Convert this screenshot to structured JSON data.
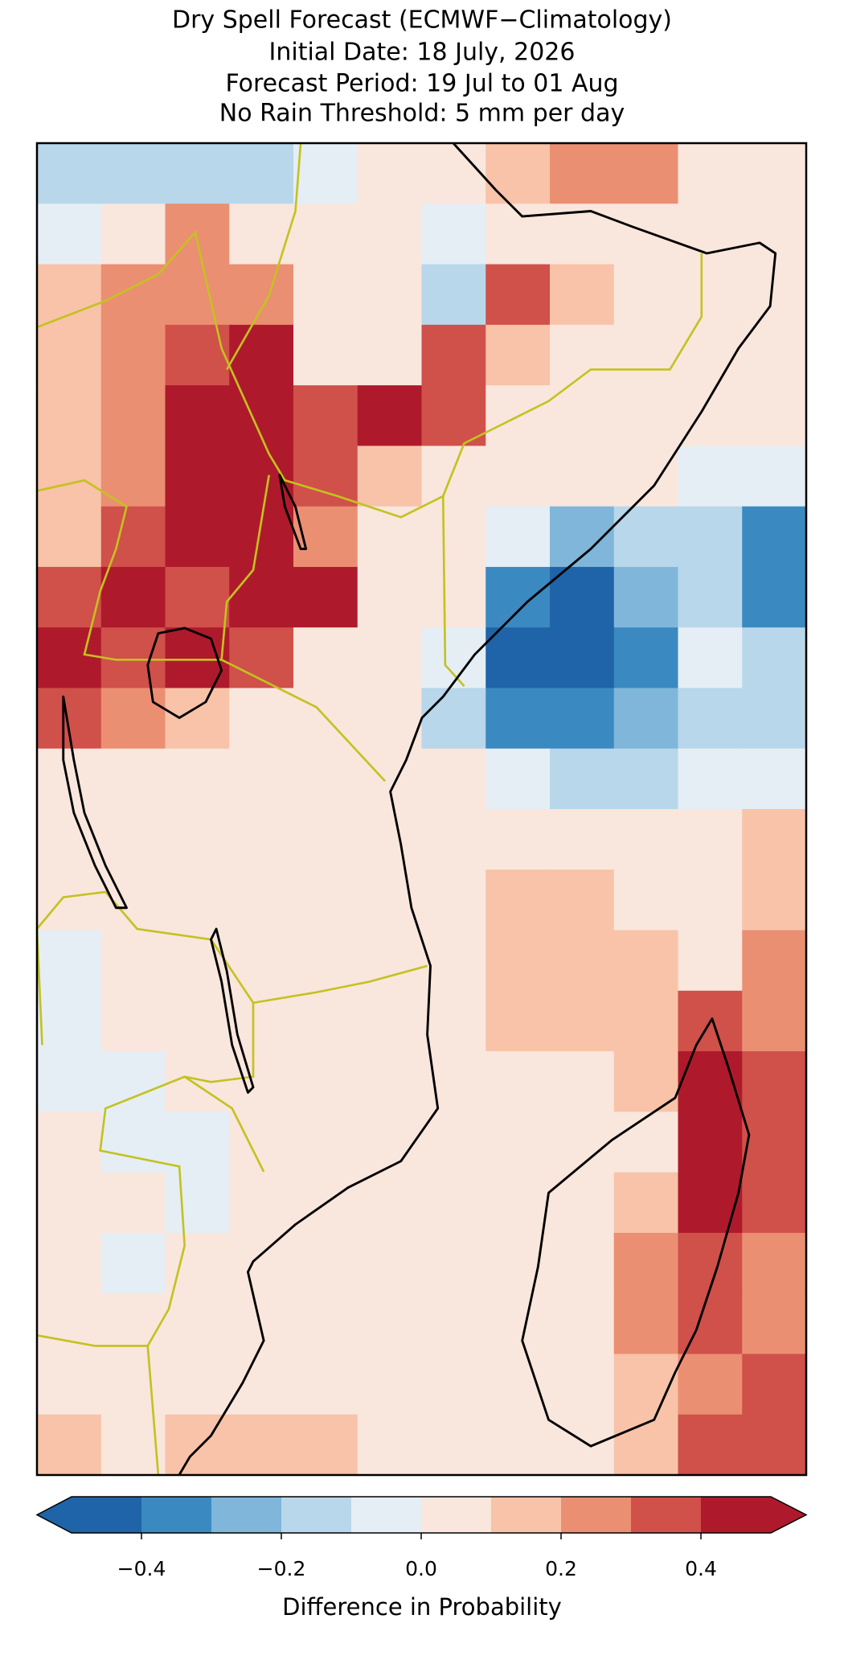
{
  "chart_data": {
    "type": "gridmap",
    "title_lines": [
      "Dry Spell Forecast (ECMWF−Climatology)",
      "Initial Date: 18 July, 2026",
      "Forecast Period: 19 Jul to 01 Aug",
      "No Rain Threshold: 5 mm per day"
    ],
    "colorbar_label": "Difference in Probability",
    "bounds": [
      -0.5,
      -0.4,
      -0.3,
      -0.2,
      -0.1,
      0,
      0.1,
      0.2,
      0.3,
      0.4,
      0.5
    ],
    "colors": [
      "#1f63a8",
      "#3a89c1",
      "#7fb6da",
      "#b8d7ea",
      "#e5eef4",
      "#f9e6dd",
      "#f8c3a8",
      "#eb8f72",
      "#d0504a",
      "#ae1a2c"
    ],
    "under_color": "#1f63a8",
    "over_color": "#ae1a2c",
    "xticks": [
      {
        "value": -0.4,
        "label": "−0.4"
      },
      {
        "value": -0.2,
        "label": "−0.2"
      },
      {
        "value": 0,
        "label": "0.0"
      },
      0.2,
      0.4
    ],
    "grid": [
      [
        -0.15,
        -0.15,
        -0.15,
        -0.15,
        -0.1,
        0.05,
        0.05,
        0.1,
        0.25,
        0.25,
        0.05,
        0.05
      ],
      [
        -0.1,
        0.05,
        0.2,
        0.05,
        0.05,
        0,
        -0.1,
        0.05,
        0.05,
        0.05,
        0.05,
        0.05
      ],
      [
        0.15,
        0.2,
        0.25,
        0.2,
        0.05,
        0.05,
        -0.15,
        0.3,
        0.15,
        0.05,
        0.05,
        0.05
      ],
      [
        0.15,
        0.2,
        0.35,
        0.45,
        0.05,
        0.05,
        0.35,
        0.1,
        0.05,
        0.05,
        0.05,
        0
      ],
      [
        0.15,
        0.25,
        0.45,
        0.45,
        0.35,
        0.4,
        0.3,
        0.05,
        0.05,
        0.05,
        0.05,
        0
      ],
      [
        0.1,
        0.25,
        0.45,
        0.45,
        0.35,
        0.1,
        0.05,
        0.05,
        0.05,
        0.05,
        -0.05,
        -0.1
      ],
      [
        0.1,
        0.3,
        0.45,
        0.45,
        0.2,
        0.05,
        0.05,
        -0.1,
        -0.3,
        -0.2,
        -0.2,
        -0.35
      ],
      [
        0.35,
        0.45,
        0.3,
        0.45,
        0.4,
        0.05,
        0,
        -0.35,
        -0.45,
        -0.3,
        -0.2,
        -0.35
      ],
      [
        0.4,
        0.35,
        0.4,
        0.3,
        0.05,
        0.05,
        -0.1,
        -0.45,
        -0.4,
        -0.35,
        -0.1,
        -0.2
      ],
      [
        0.3,
        0.2,
        0.15,
        0.05,
        0.05,
        0.05,
        -0.2,
        -0.35,
        -0.35,
        -0.25,
        -0.15,
        -0.2
      ],
      [
        0.05,
        0.05,
        0.05,
        0.05,
        0.05,
        0.05,
        0.05,
        -0.1,
        -0.15,
        -0.15,
        -0.1,
        -0.1
      ],
      [
        0.05,
        0.05,
        0.05,
        0.05,
        0.05,
        0.05,
        0.05,
        0.05,
        0.05,
        0.05,
        0.05,
        0.1
      ],
      [
        0.05,
        0.05,
        0.05,
        0.05,
        0.05,
        0.05,
        0.05,
        0.1,
        0.1,
        0.05,
        0.05,
        0.15
      ],
      [
        -0.05,
        0.05,
        0.05,
        0.05,
        0.05,
        0.05,
        0.05,
        0.15,
        0.15,
        0.1,
        0.05,
        0.2
      ],
      [
        -0.05,
        0,
        0.05,
        0.05,
        0.05,
        0.05,
        0.05,
        0.1,
        0.1,
        0.15,
        0.3,
        0.25
      ],
      [
        -0.1,
        -0.05,
        0,
        0.05,
        0.05,
        0.05,
        0.05,
        0.05,
        0.05,
        0.1,
        0.45,
        0.3
      ],
      [
        0.05,
        -0.05,
        -0.05,
        0.05,
        0.05,
        0.05,
        0.05,
        0.05,
        0.05,
        0.05,
        0.45,
        0.3
      ],
      [
        0.05,
        0,
        -0.05,
        0,
        0.05,
        0.05,
        0.05,
        0.05,
        0.05,
        0.15,
        0.4,
        0.35
      ],
      [
        0.05,
        -0.05,
        0.05,
        0.05,
        0.05,
        0.05,
        0.05,
        0.05,
        0.05,
        0.2,
        0.3,
        0.2
      ],
      [
        0.05,
        0.05,
        0.05,
        0,
        0.05,
        0.05,
        0.05,
        0.05,
        0.05,
        0.2,
        0.3,
        0.25
      ],
      [
        0.05,
        0.05,
        0.05,
        0.05,
        0.05,
        0.05,
        0.05,
        0.05,
        0.05,
        0.15,
        0.25,
        0.3
      ],
      [
        0.15,
        0.05,
        0.15,
        0.15,
        0.15,
        0.05,
        0.05,
        0.05,
        0.05,
        0.15,
        0.3,
        0.3
      ]
    ]
  }
}
